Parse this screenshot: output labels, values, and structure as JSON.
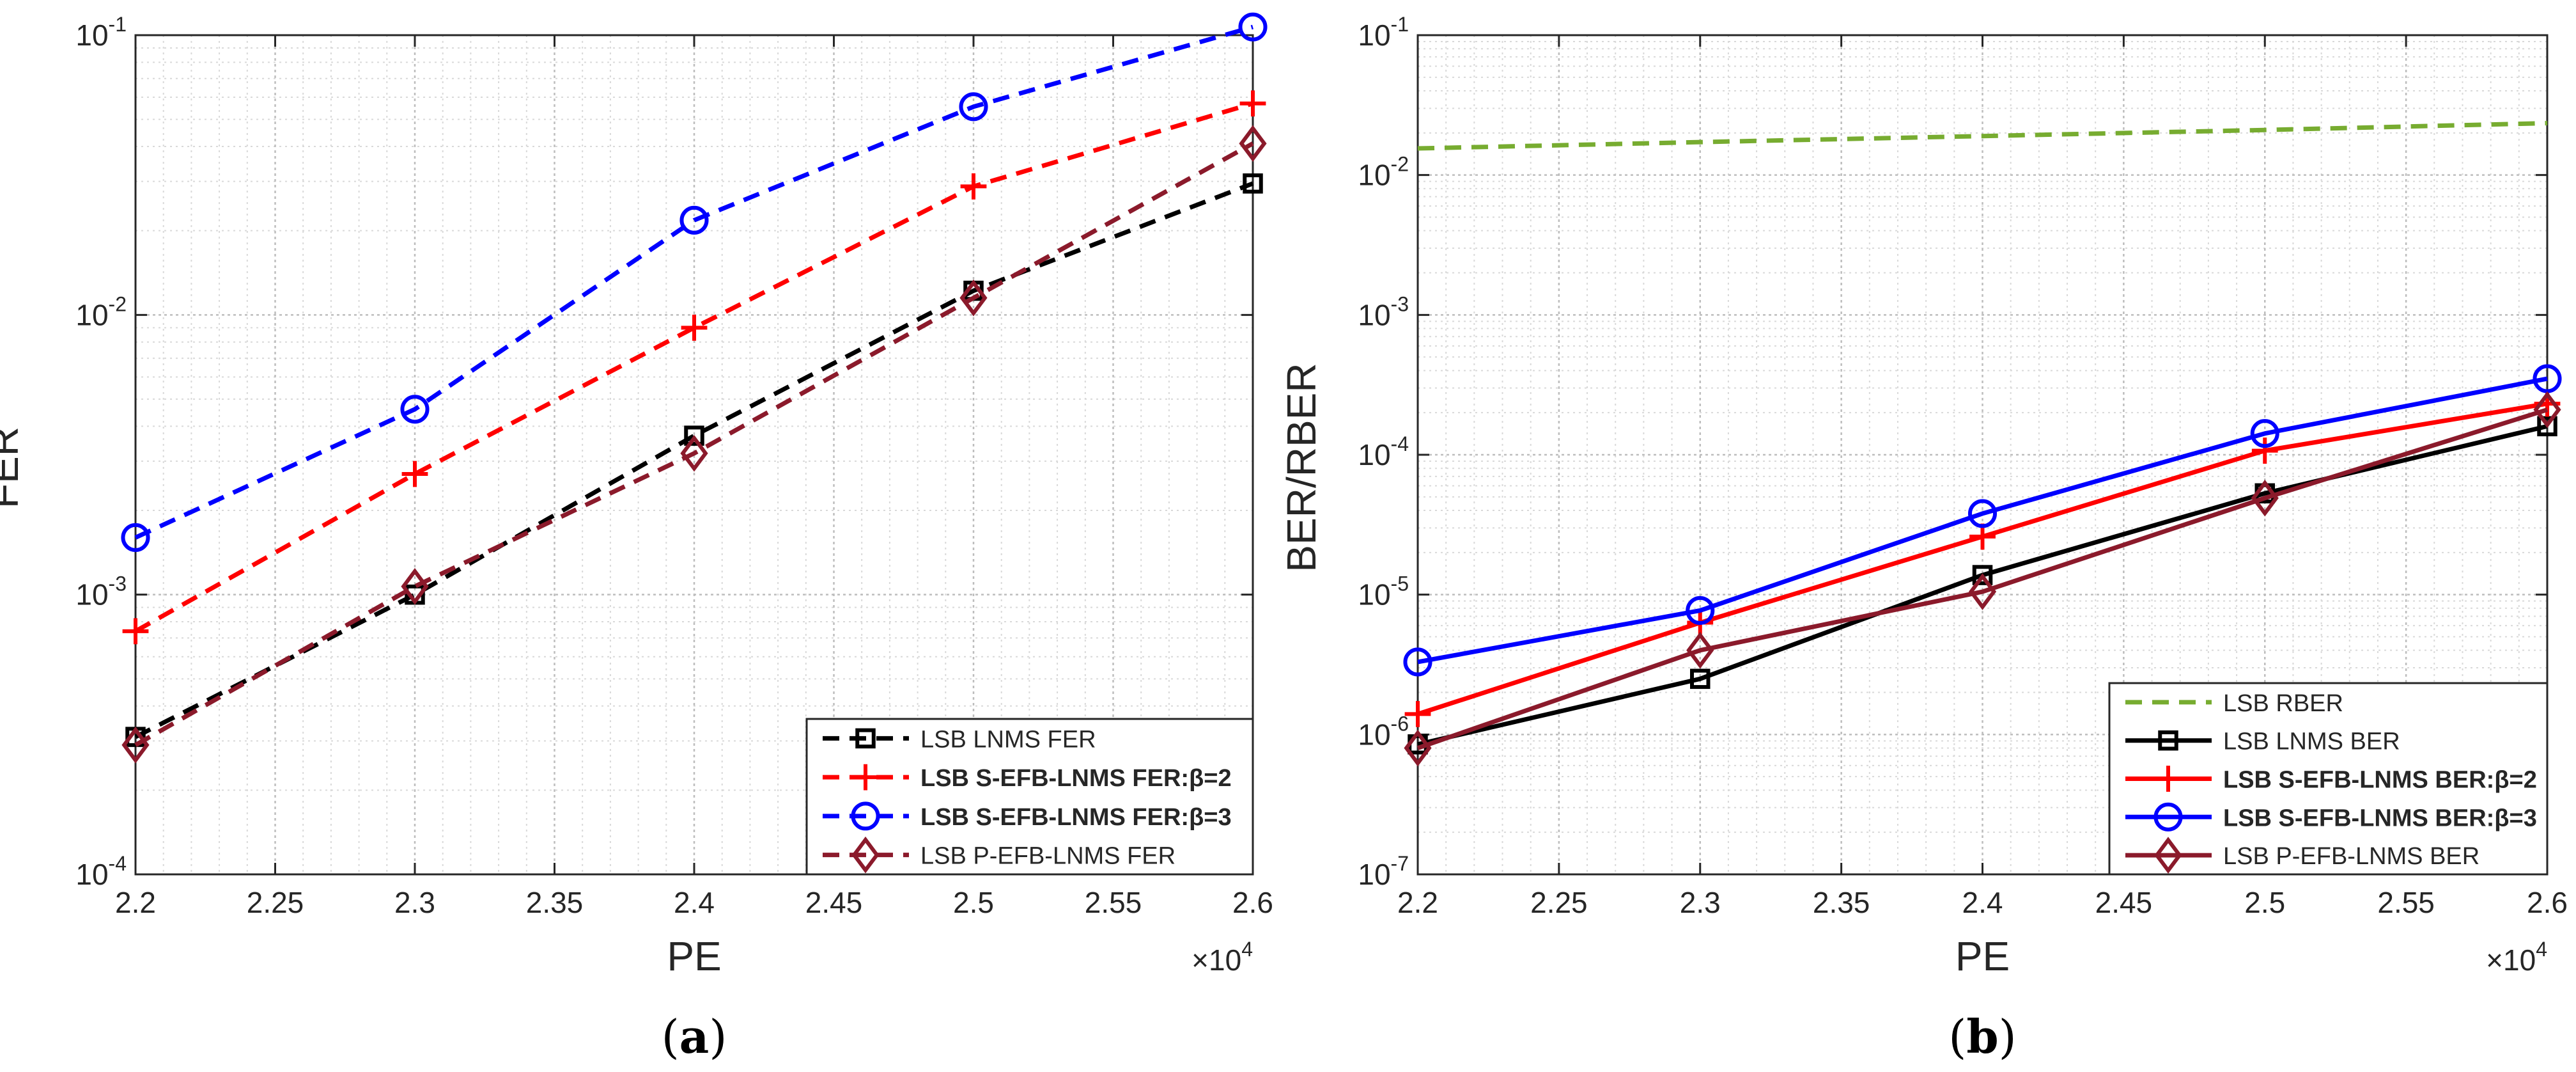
{
  "chart_data": [
    {
      "type": "line",
      "panel_label": "a",
      "xlabel": "PE",
      "ylabel": "FER",
      "x_multiplier": "×10",
      "x_multiplier_exp": "4",
      "xlim": [
        2.2,
        2.6
      ],
      "ylim": [
        0.0001,
        0.1
      ],
      "yscale": "log",
      "grid": true,
      "legend_position": "bottom-right",
      "x_ticks": [
        "2.2",
        "2.25",
        "2.3",
        "2.35",
        "2.4",
        "2.45",
        "2.5",
        "2.55",
        "2.6"
      ],
      "y_ticks": [
        {
          "base": "10",
          "exp": "-4"
        },
        {
          "base": "10",
          "exp": "-3"
        },
        {
          "base": "10",
          "exp": "-2"
        },
        {
          "base": "10",
          "exp": "-1"
        }
      ],
      "x": [
        2.2,
        2.3,
        2.4,
        2.5,
        2.6
      ],
      "series": [
        {
          "name": "LSB LNMS FER",
          "color": "#000000",
          "dash": true,
          "marker": "square",
          "bold": false,
          "values": [
            0.00031,
            0.001,
            0.0037,
            0.0122,
            0.0295
          ]
        },
        {
          "name": "LSB S-EFB-LNMS FER:β=2",
          "color": "#ff0000",
          "dash": true,
          "marker": "plus",
          "bold": true,
          "values": [
            0.00074,
            0.0027,
            0.009,
            0.0288,
            0.057
          ]
        },
        {
          "name": "LSB S-EFB-LNMS FER:β=3",
          "color": "#0000ff",
          "dash": true,
          "marker": "circle",
          "bold": true,
          "values": [
            0.0016,
            0.0046,
            0.0218,
            0.0555,
            0.107
          ]
        },
        {
          "name": "LSB P-EFB-LNMS FER",
          "color": "#8b1a2b",
          "dash": true,
          "marker": "diamond",
          "bold": false,
          "values": [
            0.00029,
            0.00107,
            0.0032,
            0.0115,
            0.041
          ]
        }
      ]
    },
    {
      "type": "line",
      "panel_label": "b",
      "xlabel": "PE",
      "ylabel": "BER/RBER",
      "x_multiplier": "×10",
      "x_multiplier_exp": "4",
      "xlim": [
        2.2,
        2.6
      ],
      "ylim": [
        1e-07,
        0.1
      ],
      "yscale": "log",
      "grid": true,
      "legend_position": "bottom-right",
      "x_ticks": [
        "2.2",
        "2.25",
        "2.3",
        "2.35",
        "2.4",
        "2.45",
        "2.5",
        "2.55",
        "2.6"
      ],
      "y_ticks": [
        {
          "base": "10",
          "exp": "-7"
        },
        {
          "base": "10",
          "exp": "-6"
        },
        {
          "base": "10",
          "exp": "-5"
        },
        {
          "base": "10",
          "exp": "-4"
        },
        {
          "base": "10",
          "exp": "-3"
        },
        {
          "base": "10",
          "exp": "-2"
        },
        {
          "base": "10",
          "exp": "-1"
        }
      ],
      "x": [
        2.2,
        2.3,
        2.4,
        2.5,
        2.6
      ],
      "series": [
        {
          "name": "LSB RBER",
          "color": "#77ac30",
          "dash": true,
          "marker": "none",
          "bold": false,
          "values": [
            0.0155,
            0.0172,
            0.019,
            0.021,
            0.0235
          ]
        },
        {
          "name": "LSB LNMS BER",
          "color": "#000000",
          "dash": false,
          "marker": "square",
          "bold": false,
          "values": [
            8.5e-07,
            2.5e-06,
            1.38e-05,
            5.3e-05,
            0.00016
          ]
        },
        {
          "name": "LSB S-EFB-LNMS BER:β=2",
          "color": "#ff0000",
          "dash": false,
          "marker": "plus",
          "bold": true,
          "values": [
            1.4e-06,
            6.3e-06,
            2.6e-05,
            0.000107,
            0.000232
          ]
        },
        {
          "name": "LSB S-EFB-LNMS BER:β=3",
          "color": "#0000ff",
          "dash": false,
          "marker": "circle",
          "bold": true,
          "values": [
            3.3e-06,
            7.7e-06,
            3.8e-05,
            0.000142,
            0.00035
          ]
        },
        {
          "name": "LSB P-EFB-LNMS BER",
          "color": "#8b1a2b",
          "dash": false,
          "marker": "diamond",
          "bold": false,
          "values": [
            8e-07,
            4e-06,
            1.05e-05,
            4.9e-05,
            0.00021
          ]
        }
      ]
    }
  ]
}
